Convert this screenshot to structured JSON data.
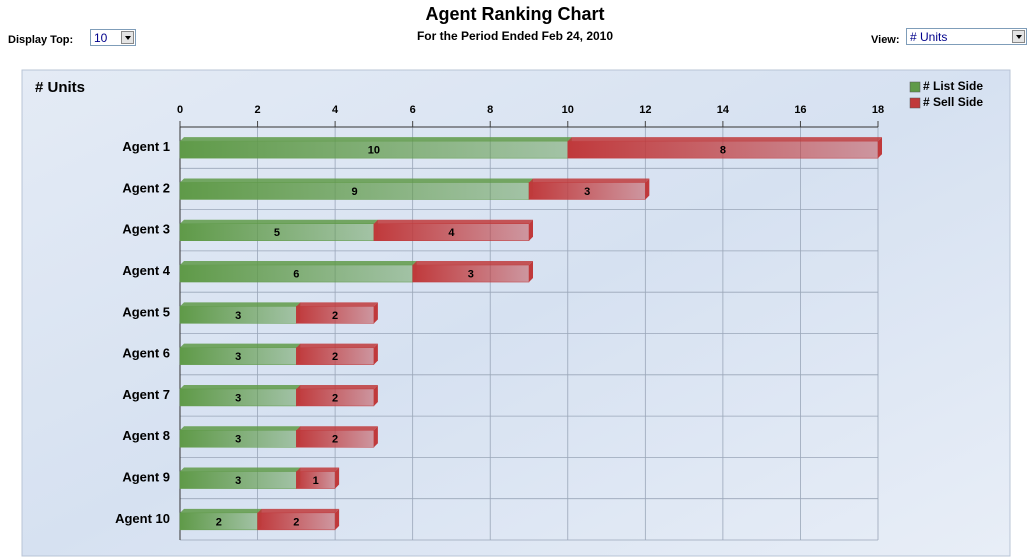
{
  "header": {
    "display_top_label": "Display Top:",
    "display_top_value": "10",
    "view_label": "View:",
    "view_value": "# Units"
  },
  "chart_data": {
    "type": "bar",
    "orientation": "horizontal",
    "stacked": true,
    "title": "Agent Ranking Chart",
    "subtitle": "For the Period Ended Feb 24, 2010",
    "panel_title": "# Units",
    "categories": [
      "Agent 1",
      "Agent 2",
      "Agent 3",
      "Agent 4",
      "Agent 5",
      "Agent 6",
      "Agent 7",
      "Agent 8",
      "Agent 9",
      "Agent 10"
    ],
    "series": [
      {
        "name": "# List Side",
        "color": "#5f9a48",
        "values": [
          10,
          9,
          5,
          6,
          3,
          3,
          3,
          3,
          3,
          2
        ]
      },
      {
        "name": "# Sell Side",
        "color": "#c0393b",
        "values": [
          8,
          3,
          4,
          3,
          2,
          2,
          2,
          2,
          1,
          2
        ]
      }
    ],
    "xlim": [
      0,
      18
    ],
    "xticks": [
      0,
      2,
      4,
      6,
      8,
      10,
      12,
      14,
      16,
      18
    ],
    "grid": true,
    "legend": "top-right"
  }
}
